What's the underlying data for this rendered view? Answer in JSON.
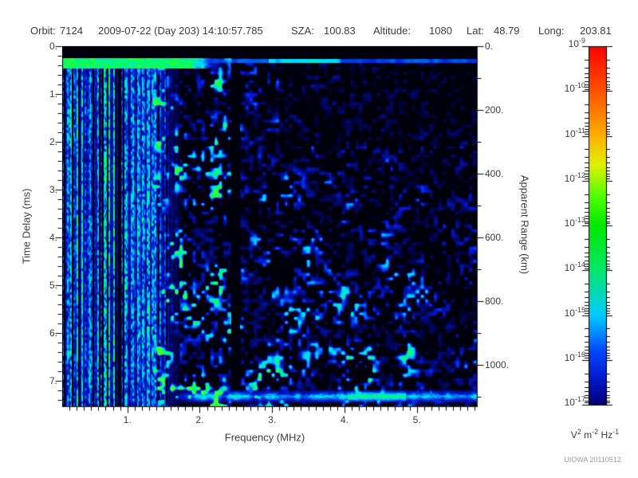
{
  "header": {
    "orbit_label": "Orbit:",
    "orbit_value": "7124",
    "datetime": "2009-07-22 (Day 203) 14:10:57.785",
    "sza_label": "SZA:",
    "sza_value": "100.83",
    "altitude_label": "Altitude:",
    "altitude_value": "1080",
    "lat_label": "Lat:",
    "lat_value": "48.79",
    "long_label": "Long:",
    "long_value": "203.81"
  },
  "footer": {
    "credit": "UIOWA 20110512"
  },
  "chart_data": {
    "type": "heatmap",
    "subtype": "radar-sounder-ionogram-spectrogram",
    "xlabel": "Frequency (MHz)",
    "ylabel": "Time Delay (ms)",
    "y2label": "Apparent Range (km)",
    "x_range_mhz": [
      0.1,
      5.83
    ],
    "x_major_tick_values": [
      1,
      2,
      3,
      4,
      5
    ],
    "x_tick_labels": [
      "1.",
      "2.",
      "3.",
      "4.",
      "5."
    ],
    "x_minor_step_mhz": 0.1,
    "y_range_ms": [
      0,
      7.53
    ],
    "y_major_tick_values": [
      0,
      1,
      2,
      3,
      4,
      5,
      6,
      7
    ],
    "y_tick_labels": [
      "0.",
      "1.",
      "2.",
      "3.",
      "4.",
      "5.",
      "6.",
      "7."
    ],
    "y_minor_step_ms": 0.2,
    "y2_range_km": [
      0,
      1130
    ],
    "y2_major_tick_values": [
      0,
      200,
      400,
      600,
      800,
      1000
    ],
    "y2_tick_labels": [
      "0.",
      "200.",
      "400.",
      "600.",
      "800.",
      "1000."
    ],
    "y2_minor_step_km": 100,
    "grid": false,
    "colorbar": {
      "scale": "log",
      "max_label_exponent": -9,
      "min_label_exponent": -17,
      "tick_exponents": [
        "-9",
        "-10",
        "-11",
        "-12",
        "-13",
        "-14",
        "-15",
        "-16",
        "-17"
      ],
      "unit_parts": [
        {
          "base": "V",
          "exp": "2"
        },
        {
          "base": "m",
          "exp": "-2"
        },
        {
          "base": "Hz",
          "exp": "-1"
        }
      ],
      "gradient_stops": [
        [
          0.0,
          "#ff0000"
        ],
        [
          0.125,
          "#ff5200"
        ],
        [
          0.25,
          "#ffb000"
        ],
        [
          0.33,
          "#e0f000"
        ],
        [
          0.42,
          "#50ff00"
        ],
        [
          0.5,
          "#00e800"
        ],
        [
          0.625,
          "#00e86a"
        ],
        [
          0.75,
          "#00ccff"
        ],
        [
          0.85,
          "#0048ff"
        ],
        [
          0.93,
          "#0018c8"
        ],
        [
          1.0,
          "#000078"
        ]
      ]
    },
    "features": [
      {
        "name": "blank_top_band",
        "t_ms": [
          0,
          0.245
        ],
        "f_mhz": [
          0.1,
          5.83
        ],
        "level": 0
      },
      {
        "name": "transmit_pulse_band",
        "t_ms": [
          0.245,
          0.47
        ],
        "f_mhz": [
          0.1,
          2.35
        ],
        "solid_until_mhz": 1.85,
        "level": 0.92
      },
      {
        "name": "zero_delay_line",
        "t_ms": [
          0.27,
          0.35
        ],
        "f_mhz": [
          1.0,
          5.83
        ],
        "level": 0.4,
        "bright_f_mhz": [
          2.95,
          3.95
        ],
        "bright_level": 0.62
      },
      {
        "name": "plasma_noise_stripes",
        "t_ms": [
          0.245,
          7.53
        ],
        "f_mhz": [
          0.1,
          1.75
        ],
        "full_until_mhz": 1.35,
        "level": 0.95,
        "dark_column_fraction": 0.16,
        "bright_column_fraction": 0.14
      },
      {
        "name": "mid_band_speckle",
        "f_mhz": [
          1.35,
          2.44
        ],
        "level": 0.62
      },
      {
        "name": "quiet_gap",
        "f_mhz": [
          2.44,
          2.56
        ],
        "attenuation": 0.05
      },
      {
        "name": "diffuse_speckle",
        "f_mhz": [
          2.56,
          5.83
        ],
        "level": 0.42,
        "fade_with_f": 0.45,
        "top_right_extra_damp": 0.5
      },
      {
        "name": "surface_echo_band",
        "t_ms": [
          7.2,
          7.45
        ],
        "f_mhz": [
          1.6,
          5.83
        ],
        "level": 0.62,
        "bright_f_mhz": [
          4.05,
          4.85
        ],
        "bright_level": 0.9
      }
    ],
    "noise_seed": 7124
  }
}
